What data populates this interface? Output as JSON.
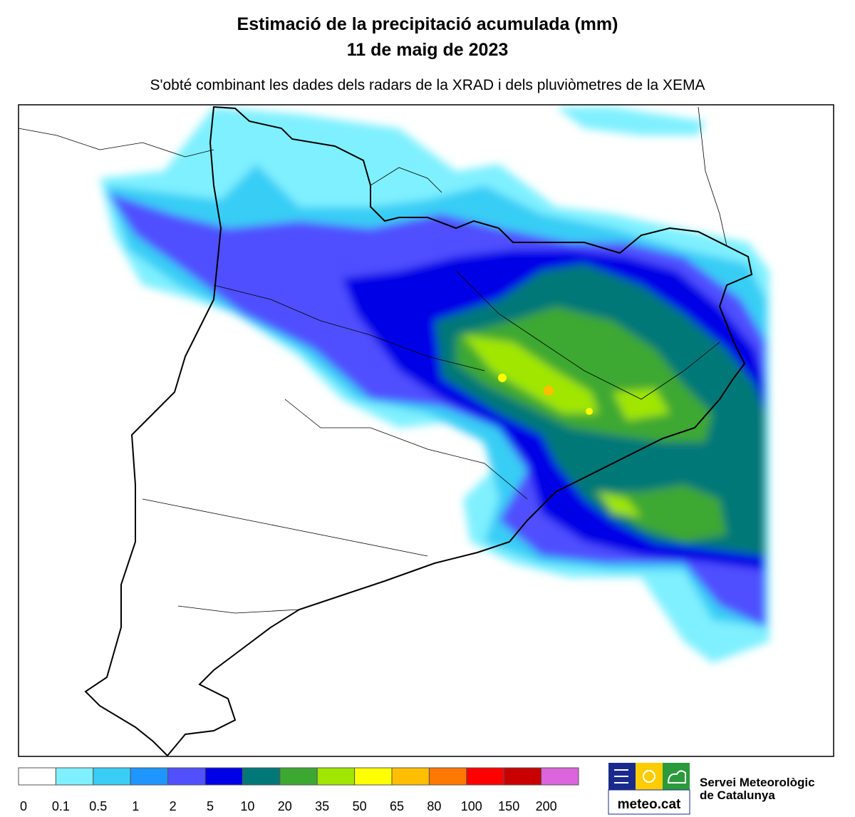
{
  "header": {
    "title": "Estimació de la precipitació acumulada (mm)",
    "date": "11 de maig de 2023",
    "subtitle": "S'obté combinant les dades dels radars de la XRAD i dels pluviòmetres de la XEMA"
  },
  "legend": {
    "items": [
      {
        "label": "0",
        "color": "#ffffff"
      },
      {
        "label": "0.1",
        "color": "#7ff0ff"
      },
      {
        "label": "0.5",
        "color": "#38cdf5"
      },
      {
        "label": "1",
        "color": "#1e96ff"
      },
      {
        "label": "2",
        "color": "#5050ff"
      },
      {
        "label": "5",
        "color": "#0000e6"
      },
      {
        "label": "10",
        "color": "#007878"
      },
      {
        "label": "20",
        "color": "#3ca832"
      },
      {
        "label": "35",
        "color": "#a0e600"
      },
      {
        "label": "50",
        "color": "#ffff00"
      },
      {
        "label": "65",
        "color": "#ffbe00"
      },
      {
        "label": "80",
        "color": "#ff7800"
      },
      {
        "label": "100",
        "color": "#ff0000"
      },
      {
        "label": "150",
        "color": "#c80000"
      },
      {
        "label": "200",
        "color": "#dc64dc"
      }
    ]
  },
  "logo": {
    "brand": "meteo.cat",
    "org_line1": "Servei Meteorològic",
    "org_line2": "de Catalunya"
  }
}
